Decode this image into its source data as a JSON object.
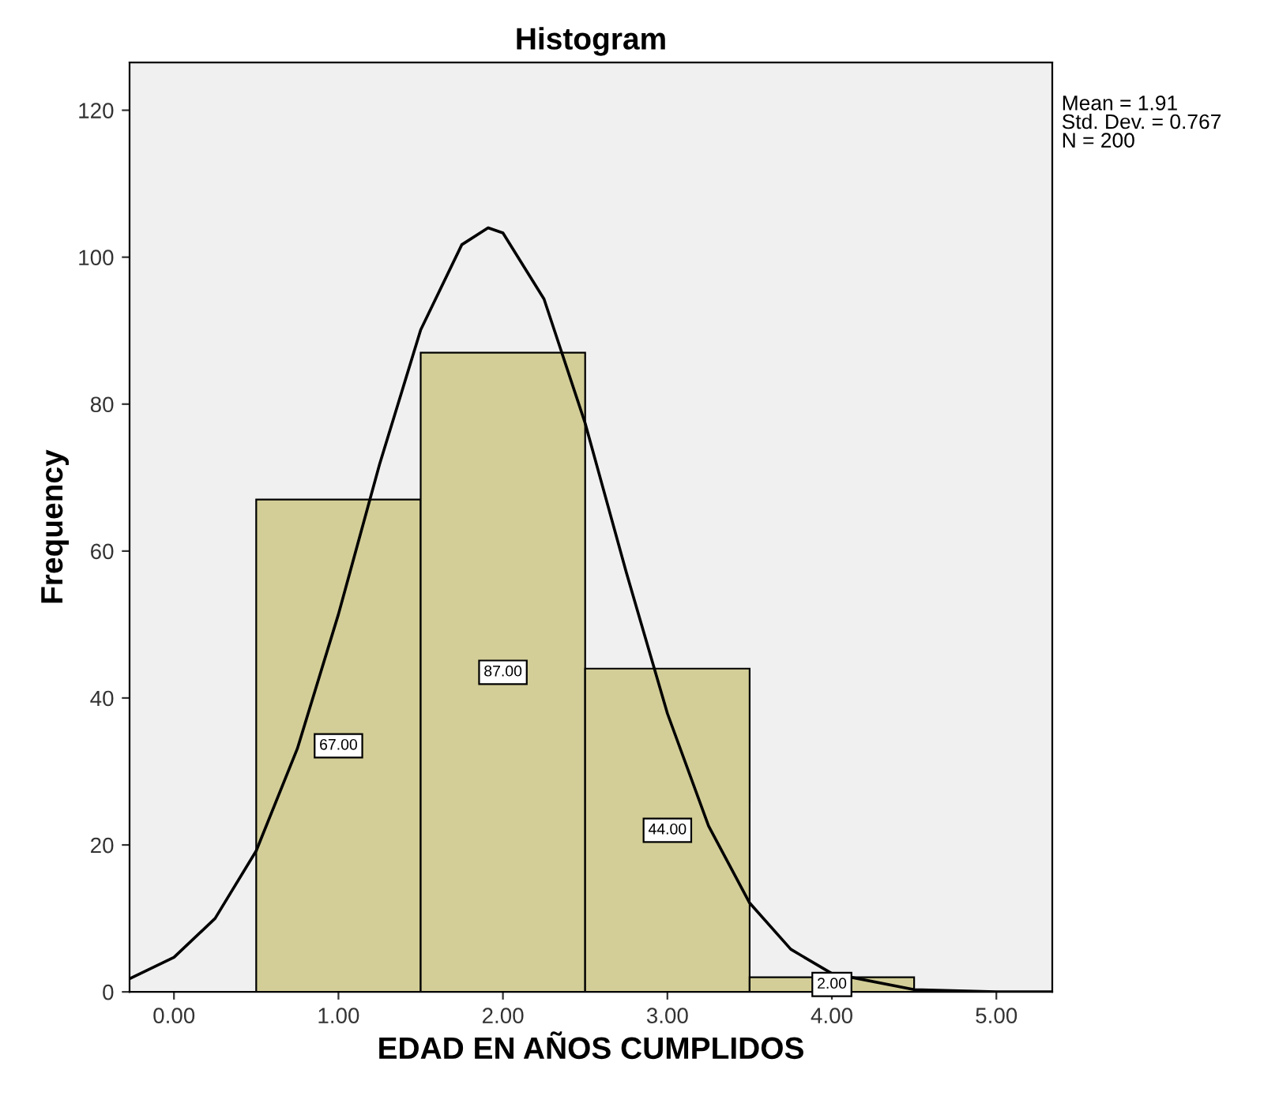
{
  "chart_data": {
    "type": "histogram",
    "title": "Histogram",
    "xlabel": "EDAD EN AÑOS CUMPLIDOS",
    "ylabel": "Frequency",
    "bins": [
      0.5,
      1.5,
      2.5,
      3.5,
      4.5
    ],
    "values": [
      67,
      87,
      44,
      2
    ],
    "color": "#d3ce97",
    "value_labels": [
      "67.00",
      "87.00",
      "44.00",
      "2.00"
    ],
    "series": [
      {
        "type": "line",
        "color": "#000000",
        "x": [
          -0.27,
          0,
          0.25,
          0.5,
          0.75,
          1.0,
          1.25,
          1.5,
          1.75,
          1.91,
          2.0,
          2.25,
          2.5,
          2.75,
          3.0,
          3.25,
          3.5,
          3.75,
          4.0,
          4.5,
          5.0,
          5.34
        ],
        "values": [
          1.8,
          4.7,
          10.0,
          19.2,
          33.1,
          51.4,
          71.8,
          90.1,
          101.7,
          104.0,
          103.3,
          94.3,
          77.4,
          57.1,
          37.9,
          22.6,
          12.1,
          5.8,
          2.5,
          0.3,
          0,
          0
        ]
      }
    ],
    "xlim": [
      -0.27,
      5.34
    ],
    "ylim": [
      0,
      126.5
    ],
    "xticks": [
      {
        "value": 0,
        "label": "0.00"
      },
      {
        "value": 1,
        "label": "1.00"
      },
      {
        "value": 2,
        "label": "2.00"
      },
      {
        "value": 3,
        "label": "3.00"
      },
      {
        "value": 4,
        "label": "4.00"
      },
      {
        "value": 5,
        "label": "5.00"
      }
    ],
    "yticks": [
      0,
      20,
      40,
      60,
      80,
      100,
      120
    ],
    "annotations": [
      "Mean = 1.91\nStd. Dev. = 0.767\nN = 200"
    ],
    "grid": false,
    "legend": false
  }
}
